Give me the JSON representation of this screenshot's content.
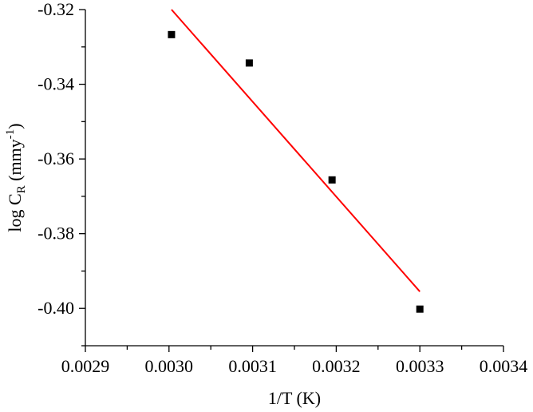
{
  "chart_data": {
    "type": "scatter",
    "title": "",
    "xlabel": "1/T (K)",
    "ylabel": {
      "prefix": "log C",
      "subscript": "R",
      "middle": " (mmy",
      "superscript": "-1",
      "suffix": ")"
    },
    "xlim": [
      0.0029,
      0.0034
    ],
    "ylim": [
      -0.41,
      -0.32
    ],
    "x_ticks": [
      {
        "value": 0.0029,
        "label": "0.0029"
      },
      {
        "value": 0.003,
        "label": "0.0030"
      },
      {
        "value": 0.0031,
        "label": "0.0031"
      },
      {
        "value": 0.0032,
        "label": "0.0032"
      },
      {
        "value": 0.0033,
        "label": "0.0033"
      },
      {
        "value": 0.0034,
        "label": "0.0034"
      }
    ],
    "y_ticks": [
      {
        "value": -0.32,
        "label": "-0.32"
      },
      {
        "value": -0.34,
        "label": "-0.34"
      },
      {
        "value": -0.36,
        "label": "-0.36"
      },
      {
        "value": -0.38,
        "label": "-0.38"
      },
      {
        "value": -0.4,
        "label": "-0.40"
      }
    ],
    "grid": false,
    "series": [
      {
        "kind": "scatter",
        "marker": "square",
        "color": "#000000",
        "points": [
          {
            "x": 0.003003,
            "y": -0.3267
          },
          {
            "x": 0.003096,
            "y": -0.3343
          },
          {
            "x": 0.003195,
            "y": -0.3656
          },
          {
            "x": 0.0033,
            "y": -0.4002
          }
        ]
      },
      {
        "kind": "fit-line",
        "color": "#ff0000",
        "points": [
          {
            "x": 0.003003,
            "y": -0.32
          },
          {
            "x": 0.0033,
            "y": -0.3955
          }
        ]
      }
    ]
  }
}
